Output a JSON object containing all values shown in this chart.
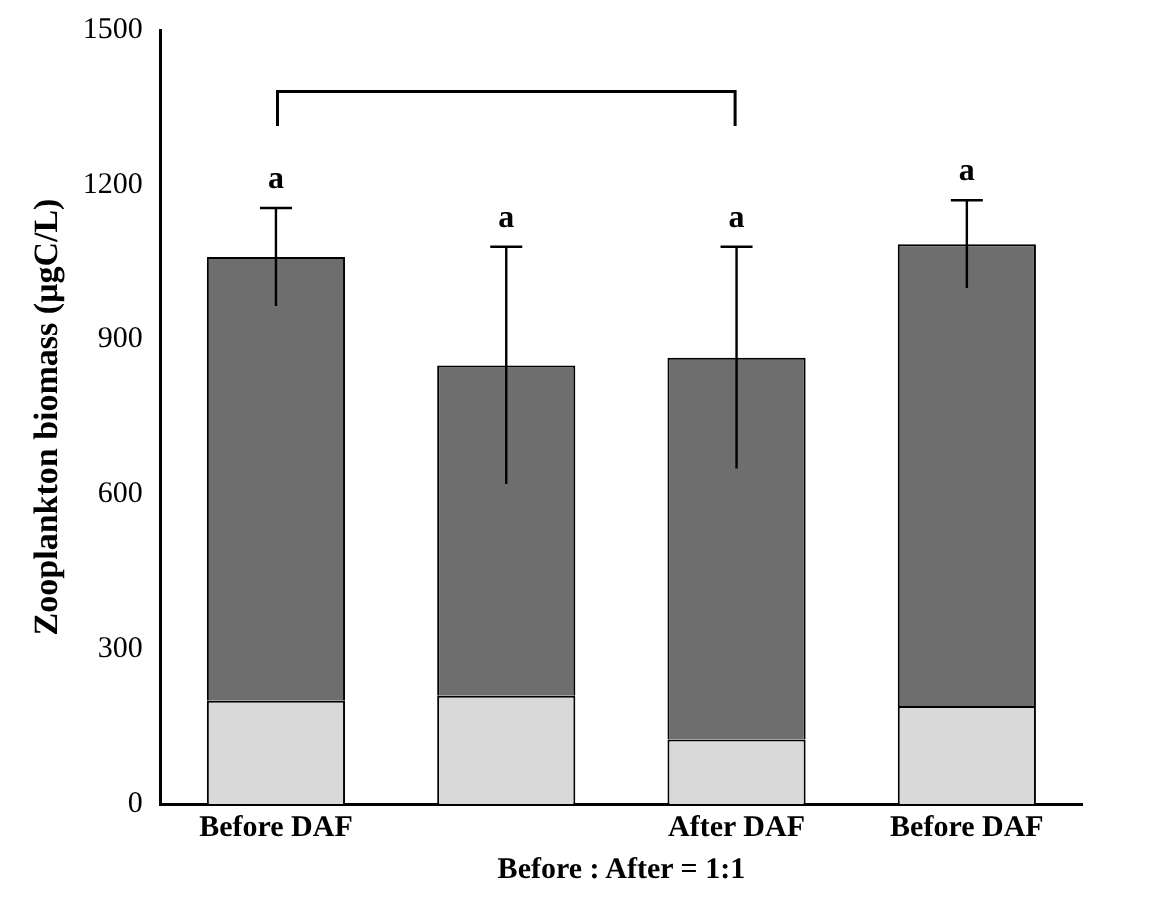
{
  "chart_data": {
    "type": "bar",
    "stacked": true,
    "ylabel": "Zooplankton biomass (μgC/L)",
    "xlabel": "Before : After = 1:1",
    "categories": [
      "Before DAF",
      null,
      "After DAF",
      "Before DAF"
    ],
    "series": [
      {
        "color": "#d9d9d9",
        "values": [
          200,
          210,
          125,
          190
        ]
      },
      {
        "color": "#6e6e6e",
        "values": [
          860,
          640,
          740,
          895
        ],
        "errors": [
          95,
          230,
          215,
          85
        ]
      }
    ],
    "ylim": [
      0,
      1500
    ],
    "yticks": [
      0,
      300,
      600,
      900,
      1200,
      1500
    ],
    "grid": false,
    "legend": false,
    "annotations": [
      "a",
      "a",
      "a",
      "a"
    ]
  }
}
